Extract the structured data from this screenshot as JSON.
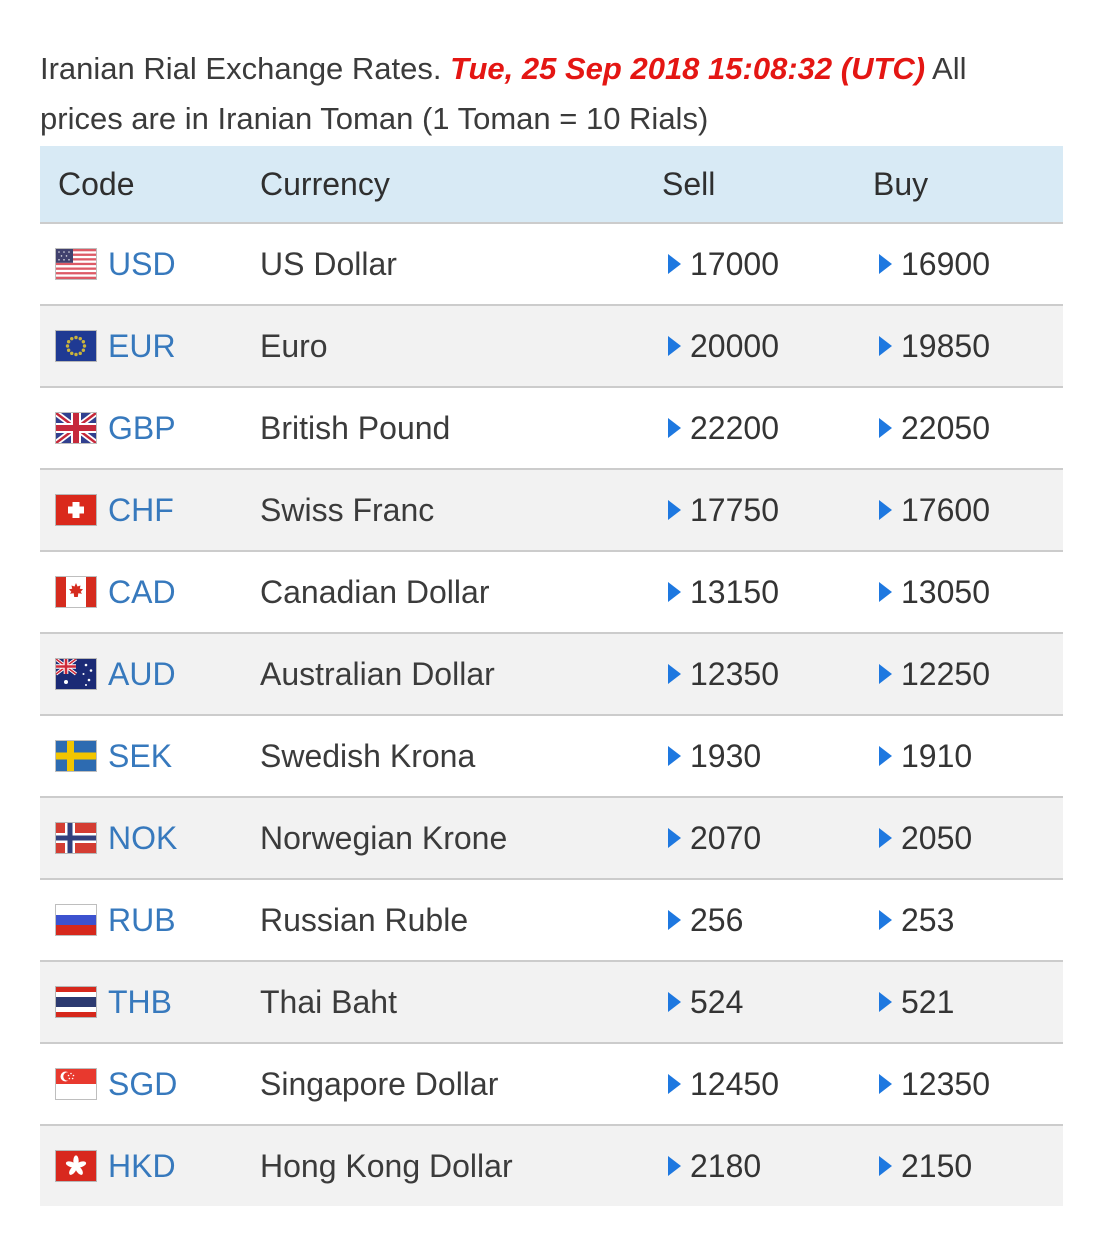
{
  "header": {
    "line1_black": "Iranian Rial Exchange Rates. ",
    "line1_red": "Tue, 25 Sep 2018 15:08:32 (UTC)",
    "line1_tail": " All",
    "line2": "prices are in Iranian Toman (1 Toman = 10 Rials)"
  },
  "table": {
    "columns": [
      "Code",
      "Currency",
      "Sell",
      "Buy"
    ],
    "rows": [
      {
        "flag_icon": "us-flag-icon",
        "code": "USD",
        "currency": "US Dollar",
        "sell": "17000",
        "buy": "16900"
      },
      {
        "flag_icon": "eu-flag-icon",
        "code": "EUR",
        "currency": "Euro",
        "sell": "20000",
        "buy": "19850"
      },
      {
        "flag_icon": "gb-flag-icon",
        "code": "GBP",
        "currency": "British Pound",
        "sell": "22200",
        "buy": "22050"
      },
      {
        "flag_icon": "ch-flag-icon",
        "code": "CHF",
        "currency": "Swiss Franc",
        "sell": "17750",
        "buy": "17600"
      },
      {
        "flag_icon": "ca-flag-icon",
        "code": "CAD",
        "currency": "Canadian Dollar",
        "sell": "13150",
        "buy": "13050"
      },
      {
        "flag_icon": "au-flag-icon",
        "code": "AUD",
        "currency": "Australian Dollar",
        "sell": "12350",
        "buy": "12250"
      },
      {
        "flag_icon": "se-flag-icon",
        "code": "SEK",
        "currency": "Swedish Krona",
        "sell": "1930",
        "buy": "1910"
      },
      {
        "flag_icon": "no-flag-icon",
        "code": "NOK",
        "currency": "Norwegian Krone",
        "sell": "2070",
        "buy": "2050"
      },
      {
        "flag_icon": "ru-flag-icon",
        "code": "RUB",
        "currency": "Russian Ruble",
        "sell": "256",
        "buy": "253"
      },
      {
        "flag_icon": "th-flag-icon",
        "code": "THB",
        "currency": "Thai Baht",
        "sell": "524",
        "buy": "521"
      },
      {
        "flag_icon": "sg-flag-icon",
        "code": "SGD",
        "currency": "Singapore Dollar",
        "sell": "12450",
        "buy": "12350"
      },
      {
        "flag_icon": "hk-flag-icon",
        "code": "HKD",
        "currency": "Hong Kong Dollar",
        "sell": "2180",
        "buy": "2150"
      }
    ]
  },
  "colors": {
    "header_bg": "#d8eaf5",
    "row_alt_bg": "#f2f2f2",
    "code_link": "#3779bd",
    "arrow": "#1e78e0",
    "date_red": "#e41613",
    "text": "#3b3b3b",
    "border": "#cccccc"
  }
}
